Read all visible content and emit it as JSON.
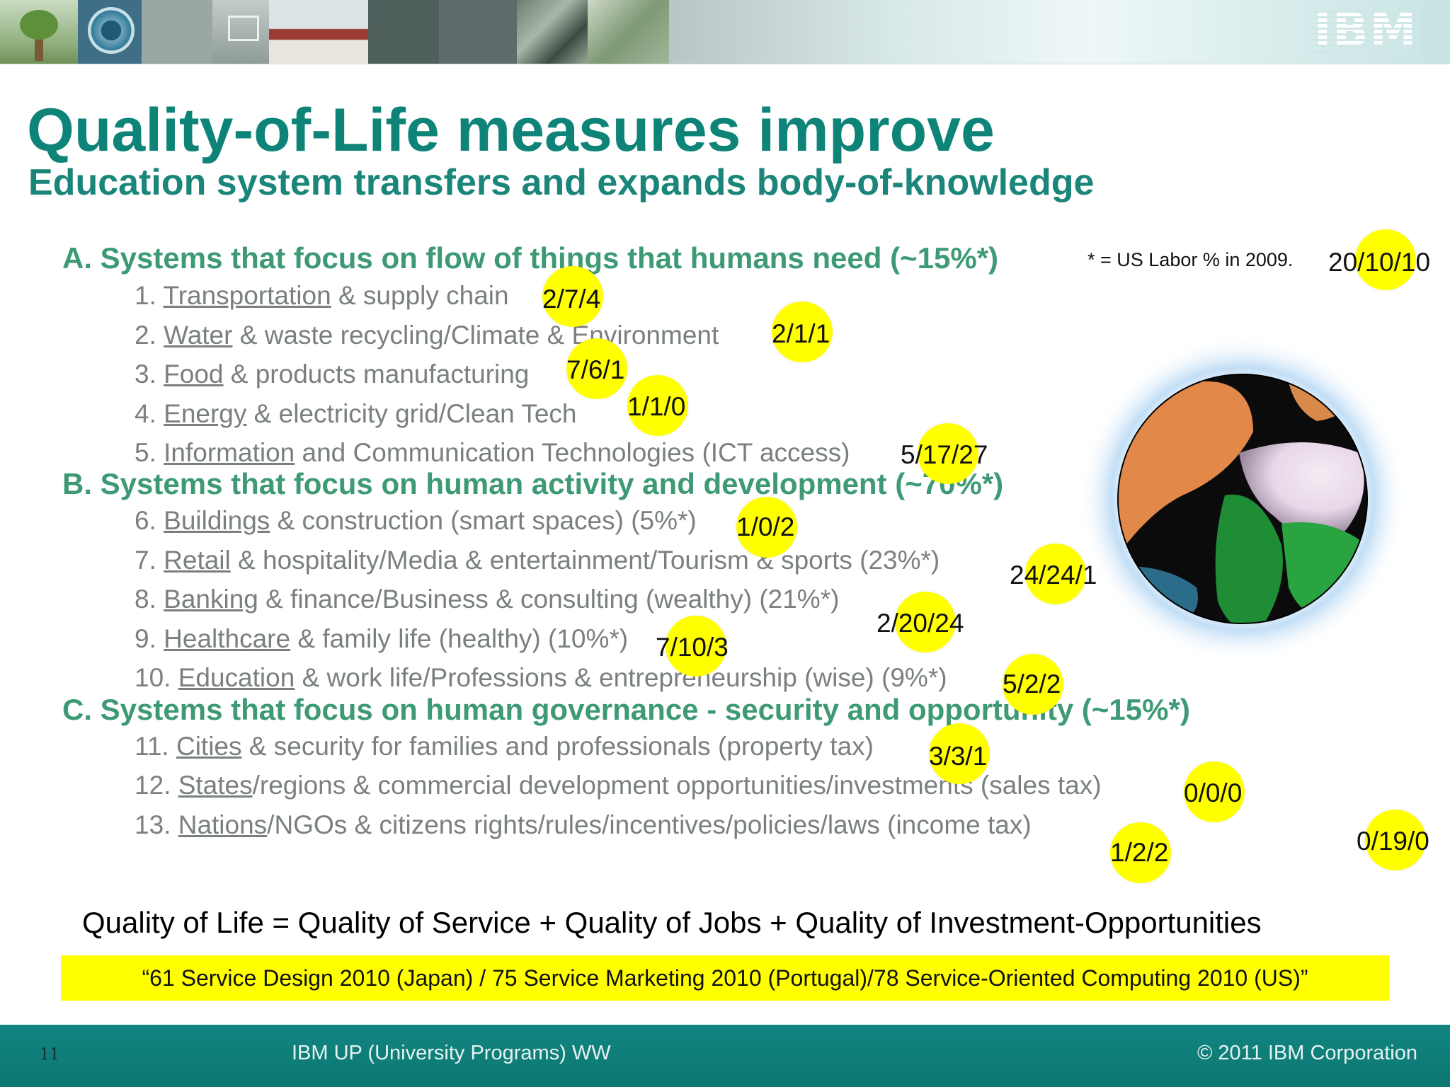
{
  "header": {
    "logo_text": "IBM"
  },
  "title": "Quality-of-Life measures improve",
  "subtitle": "Education system transfers and expands body-of-knowledge",
  "footnote": "* = US Labor % in 2009.",
  "sections": [
    {
      "label": "A. Systems that focus on flow of things that humans need (~15%*)"
    },
    {
      "label": "B. Systems that focus on human activity and development (~70%*)"
    },
    {
      "label": "C. Systems that focus on human governance - security and opportunity (~15%*)"
    }
  ],
  "items": [
    {
      "num": "1. ",
      "link": "Transportation",
      "rest": " & supply chain"
    },
    {
      "num": "2. ",
      "link": "Water",
      "rest": " & waste recycling/Climate & Environment"
    },
    {
      "num": "3. ",
      "link": "Food",
      "rest": " & products manufacturing"
    },
    {
      "num": "4. ",
      "link": "Energy",
      "rest": " & electricity grid/Clean Tech"
    },
    {
      "num": "5. ",
      "link": "Information",
      "rest": " and Communication Technologies (ICT access)"
    },
    {
      "num": "6. ",
      "link": "Buildings",
      "rest": " & construction (smart spaces) (5%*)"
    },
    {
      "num": "7. ",
      "link": "Retail",
      "rest": " & hospitality/Media & entertainment/Tourism & sports (23%*)"
    },
    {
      "num": "8. ",
      "link": "Banking",
      "rest": " & finance/Business & consulting (wealthy) (21%*)"
    },
    {
      "num": "9. ",
      "link": "Healthcare",
      "rest": " & family life (healthy) (10%*)"
    },
    {
      "num": "10. ",
      "link": "Education",
      "rest": " & work life/Professions & entrepreneurship (wise) (9%*)"
    },
    {
      "num": "11. ",
      "link": "Cities",
      "rest": " & security for families and professionals (property tax)"
    },
    {
      "num": "12. ",
      "link": "States",
      "rest": "/regions & commercial development opportunities/investments (sales tax)"
    },
    {
      "num": "13. ",
      "link": "Nations",
      "rest": "/NGOs & citizens rights/rules/incentives/policies/laws (income tax)"
    }
  ],
  "scores": [
    "20/10/10",
    "2/7/4",
    "2/1/1",
    "7/6/1",
    "1/1/0",
    "5/17/27",
    "1/0/2",
    "24/24/1",
    "2/20/24",
    "7/10/3",
    "5/2/2",
    "3/3/1",
    "0/0/0",
    "1/2/2",
    "0/19/0"
  ],
  "equation": "Quality of Life = Quality of Service + Quality of Jobs + Quality of Investment-Opportunities",
  "quote": "“61 Service Design 2010 (Japan) / 75 Service Marketing 2010 (Portugal)/78 Service-Oriented Computing 2010 (US)”",
  "footer": {
    "slide_number": "11",
    "center_text": "IBM UP (University Programs) WW",
    "copyright": "© 2011 IBM Corporation"
  },
  "colors": {
    "title": "#0e8478",
    "section": "#3d9a74",
    "item": "#7a7f7f",
    "badge": "#ffff00",
    "footer": "#118580"
  }
}
